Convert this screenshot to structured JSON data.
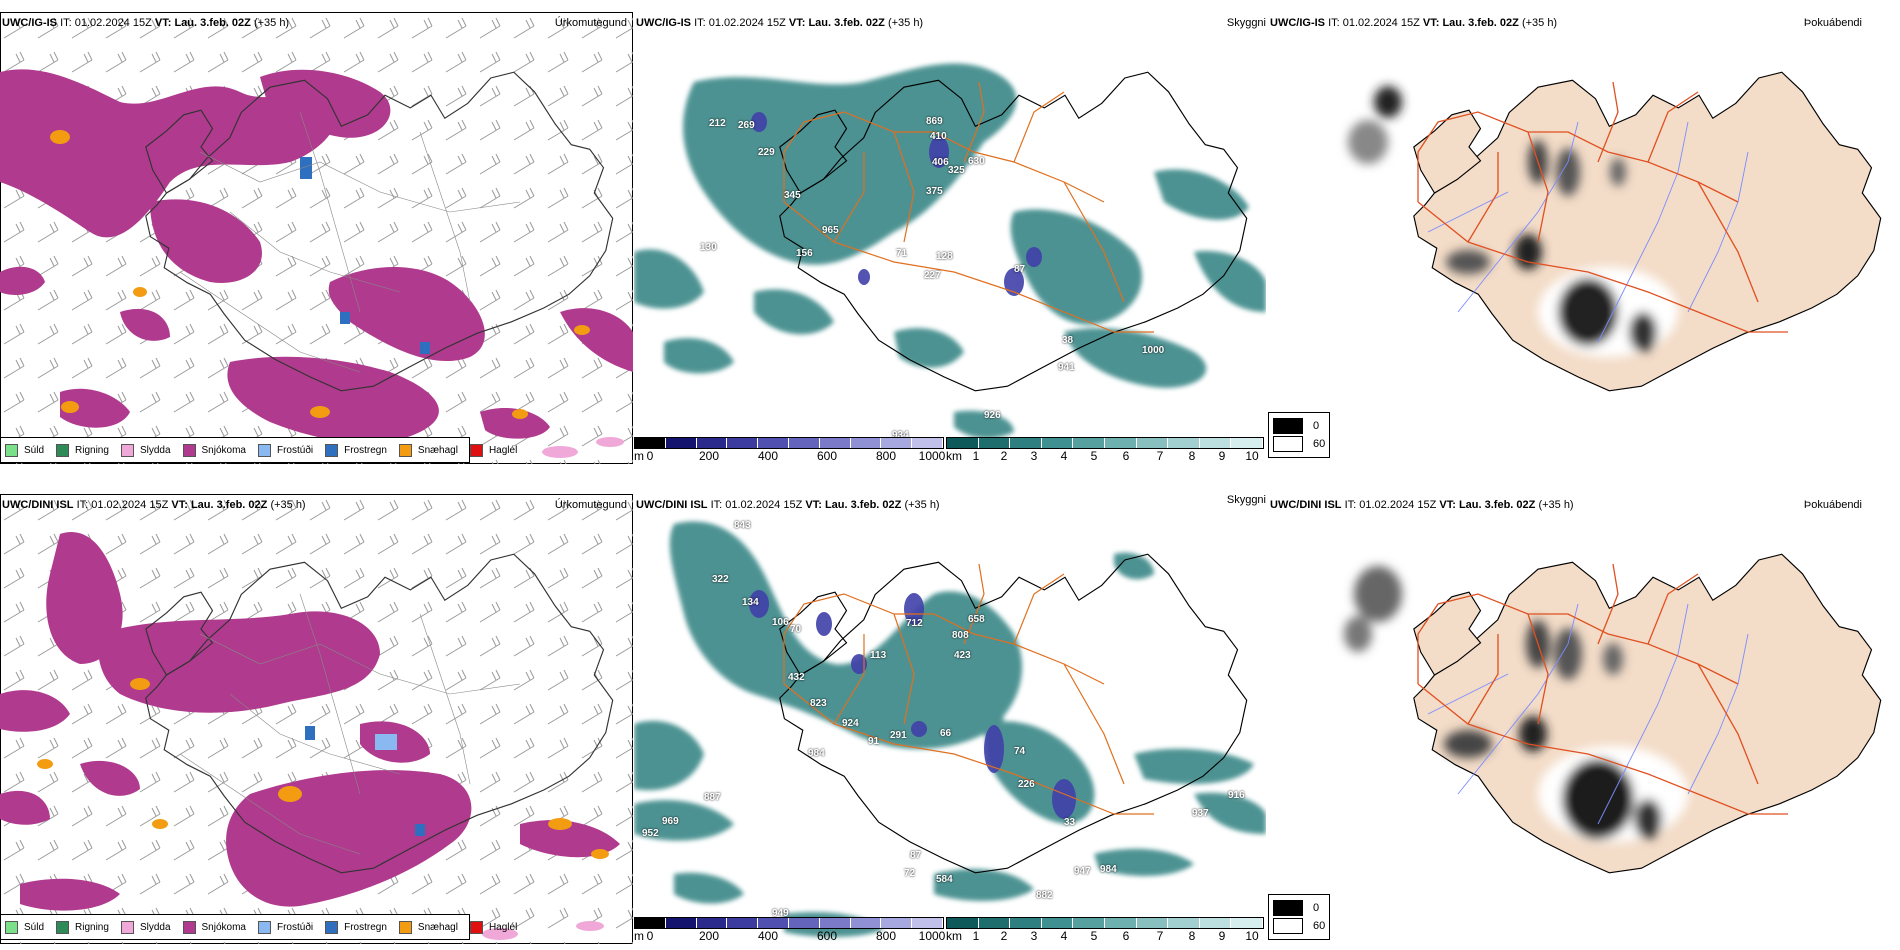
{
  "rows": [
    {
      "model": "UWC/IG-IS",
      "it_label": "IT:",
      "it_value": "01.02.2024 15Z",
      "vt_label": "VT:",
      "vt_value": "Lau. 3.feb. 02Z",
      "lead": "(+35 h)",
      "sky_labels": [
        "212",
        "269",
        "229",
        "345",
        "869",
        "410",
        "406",
        "630",
        "325",
        "375",
        "965",
        "130",
        "156",
        "71",
        "128",
        "227",
        "87",
        "38",
        "941",
        "1000",
        "926",
        "934"
      ]
    },
    {
      "model": "UWC/DINI ISL",
      "it_label": "IT:",
      "it_value": "01.02.2024 15Z",
      "vt_label": "VT:",
      "vt_value": "Lau. 3.feb. 02Z",
      "lead": "(+35 h)",
      "sky_labels": [
        "843",
        "322",
        "134",
        "106",
        "70",
        "432",
        "823",
        "712",
        "808",
        "658",
        "423",
        "113",
        "66",
        "291",
        "91",
        "924",
        "984",
        "74",
        "226",
        "33",
        "887",
        "969",
        "952",
        "937",
        "916",
        "87",
        "72",
        "584",
        "947",
        "984",
        "882",
        "949"
      ]
    }
  ],
  "panel_titles": {
    "precip": "Úrkomutegund",
    "cloud": "Skyggni",
    "fog": "Þokuábendi"
  },
  "precip_legend": [
    {
      "label": "Súld",
      "color": "#7be08a"
    },
    {
      "label": "Rigning",
      "color": "#2e8b57"
    },
    {
      "label": "Slydda",
      "color": "#f0a8d8"
    },
    {
      "label": "Snjókoma",
      "color": "#b03a8e"
    },
    {
      "label": "Frostúði",
      "color": "#8ab8f0"
    },
    {
      "label": "Frostregn",
      "color": "#2f6fc0"
    },
    {
      "label": "Snæhagl",
      "color": "#f39c12"
    },
    {
      "label": "Haglél",
      "color": "#e01010"
    }
  ],
  "cloudbase_bar": {
    "unit": "m",
    "ticks": [
      "0",
      "200",
      "400",
      "600",
      "800",
      "1000"
    ],
    "colors": [
      "#000000",
      "#14146e",
      "#2a2a8c",
      "#3c3ca0",
      "#5050b0",
      "#6464bc",
      "#7a7ac8",
      "#9090d4",
      "#a8a8e0",
      "#c0c0ea"
    ]
  },
  "visibility_bar": {
    "unit": "km",
    "ticks": [
      "1",
      "2",
      "3",
      "4",
      "5",
      "6",
      "7",
      "8",
      "9",
      "10"
    ],
    "colors": [
      "#0e5a5a",
      "#1e6e6e",
      "#2e8080",
      "#3f9090",
      "#56a0a0",
      "#6eb0b0",
      "#88c0c0",
      "#a2d0d0",
      "#bcdfdf",
      "#d6eeee"
    ]
  },
  "fog_scale": [
    {
      "value": "0",
      "color": "#000000"
    },
    {
      "value": "60",
      "color": "#ffffff"
    }
  ],
  "colors": {
    "snow": "#b03a8e",
    "sleet_orange": "#f39c12",
    "teal": "#2e8080",
    "land_tan": "#f3dcc8",
    "roads": "#e07020",
    "rivers": "#7b8cff"
  }
}
